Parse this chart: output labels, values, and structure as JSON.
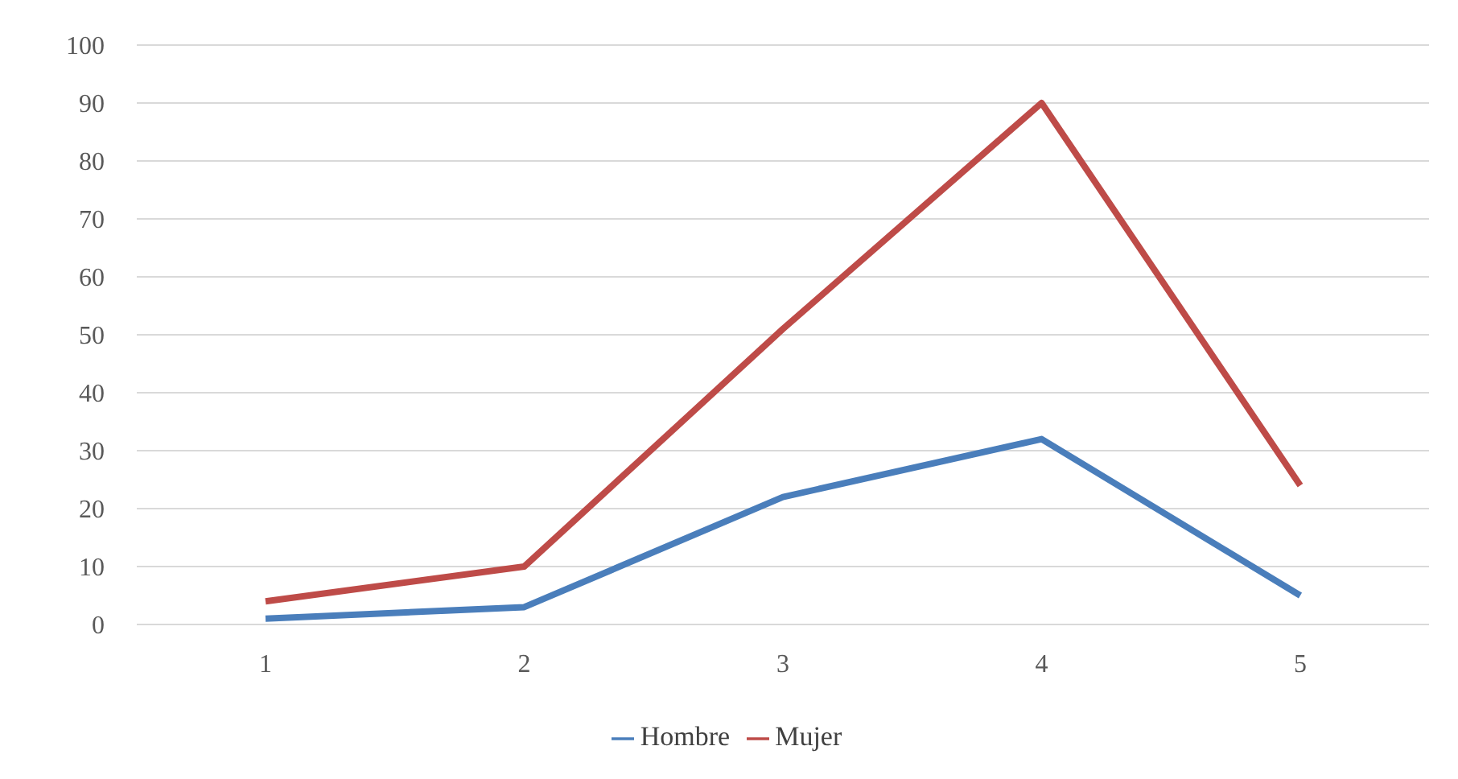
{
  "chart_data": {
    "type": "line",
    "categories": [
      "1",
      "2",
      "3",
      "4",
      "5"
    ],
    "series": [
      {
        "name": "Hombre",
        "color": "#4a7ebb",
        "values": [
          1,
          3,
          22,
          32,
          5
        ]
      },
      {
        "name": "Mujer",
        "color": "#be4b48",
        "values": [
          4,
          10,
          51,
          90,
          24
        ]
      }
    ],
    "ylim": [
      0,
      100
    ],
    "yticks": [
      0,
      10,
      20,
      30,
      40,
      50,
      60,
      70,
      80,
      90,
      100
    ],
    "grid": "y",
    "legend": "bottom",
    "marker": "none",
    "line_style": "solid"
  }
}
